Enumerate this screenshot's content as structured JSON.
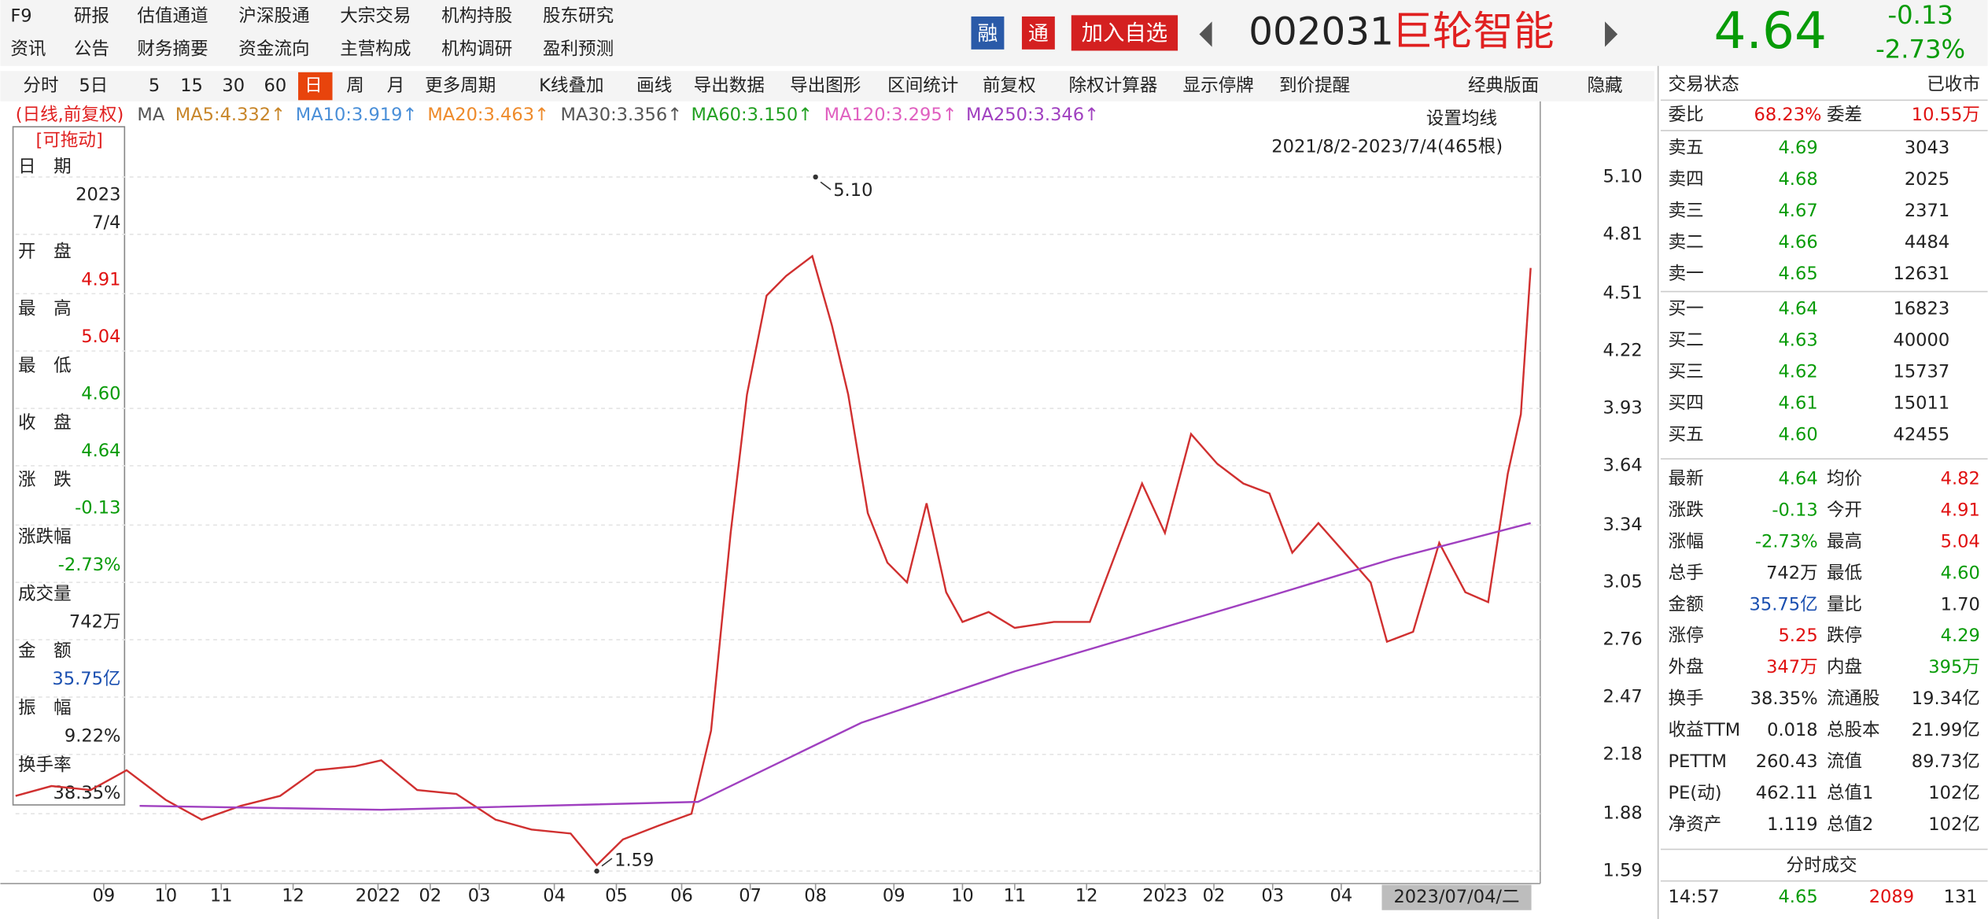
{
  "top_menu": [
    [
      "F9",
      "研报",
      "估值通道",
      "沪深股通",
      "大宗交易",
      "机构持股",
      "股东研究"
    ],
    [
      "资讯",
      "公告",
      "财务摘要",
      "资金流向",
      "主营构成",
      "机构调研",
      "盈利预测"
    ]
  ],
  "quote_header": {
    "tags": [
      "融",
      "通"
    ],
    "add_button": "加入自选",
    "code": "002031",
    "name": "巨轮智能",
    "price": "4.64",
    "change": "-0.13",
    "change_pct": "-2.73%"
  },
  "period_bar": [
    "分时",
    "5日",
    "5",
    "15",
    "30",
    "60",
    "日",
    "周",
    "月",
    "更多周期",
    "K线叠加",
    "画线",
    "导出数据",
    "导出图形",
    "区间统计",
    "前复权",
    "除权计算器",
    "显示停牌",
    "到价提醒",
    "经典版面",
    "隐藏"
  ],
  "ma_legend": {
    "mode": "(日线,前复权)",
    "prefix": "MA",
    "items": [
      {
        "label": "MA5:4.332↑",
        "color": "#c8862a"
      },
      {
        "label": "MA10:3.919↑",
        "color": "#4a8fd8"
      },
      {
        "label": "MA20:3.463↑",
        "color": "#ee8a2a"
      },
      {
        "label": "MA30:3.356↑",
        "color": "#555555"
      },
      {
        "label": "MA60:3.150↑",
        "color": "#22a022"
      },
      {
        "label": "MA120:3.295↑",
        "color": "#e060c0"
      },
      {
        "label": "MA250:3.346↑",
        "color": "#a040c0"
      }
    ]
  },
  "chart_controls": {
    "set_ma": "设置均线",
    "range": "2021/8/2-2023/7/4(465根)",
    "drag": "[可拖动]"
  },
  "info_panel": [
    {
      "label": "日　期",
      "values": [
        "2023",
        "7/4"
      ],
      "color": "#222222"
    },
    {
      "label": "开　盘",
      "values": [
        "4.91"
      ],
      "color": "#e01010"
    },
    {
      "label": "最　高",
      "values": [
        "5.04"
      ],
      "color": "#e01010"
    },
    {
      "label": "最　低",
      "values": [
        "4.60"
      ],
      "color": "#079b07"
    },
    {
      "label": "收　盘",
      "values": [
        "4.64"
      ],
      "color": "#079b07"
    },
    {
      "label": "涨　跌",
      "values": [
        "-0.13"
      ],
      "color": "#079b07"
    },
    {
      "label": "涨跌幅",
      "values": [
        "-2.73%"
      ],
      "color": "#079b07"
    },
    {
      "label": "成交量",
      "values": [
        "742万"
      ],
      "color": "#222222"
    },
    {
      "label": "金　额",
      "values": [
        "35.75亿"
      ],
      "color": "#1a4fb0"
    },
    {
      "label": "振　幅",
      "values": [
        "9.22%"
      ],
      "color": "#222222"
    },
    {
      "label": "换手率",
      "values": [
        "38.35%"
      ],
      "color": "#222222"
    }
  ],
  "order_book": {
    "status_label": "交易状态",
    "status": "已收市",
    "weibi_label": "委比",
    "weibi": "68.23%",
    "weicha_label": "委差",
    "weicha": "10.55万",
    "asks": [
      [
        "卖五",
        "4.69",
        "3043"
      ],
      [
        "卖四",
        "4.68",
        "2025"
      ],
      [
        "卖三",
        "4.67",
        "2371"
      ],
      [
        "卖二",
        "4.66",
        "4484"
      ],
      [
        "卖一",
        "4.65",
        "12631"
      ]
    ],
    "bids": [
      [
        "买一",
        "4.64",
        "16823"
      ],
      [
        "买二",
        "4.63",
        "40000"
      ],
      [
        "买三",
        "4.62",
        "15737"
      ],
      [
        "买四",
        "4.61",
        "15011"
      ],
      [
        "买五",
        "4.60",
        "42455"
      ]
    ]
  },
  "stats": [
    {
      "cells": [
        "最新",
        "4.64",
        "均价",
        "4.82"
      ],
      "colors": [
        "#079b07",
        "#e01010"
      ]
    },
    {
      "cells": [
        "涨跌",
        "-0.13",
        "今开",
        "4.91"
      ],
      "colors": [
        "#079b07",
        "#e01010"
      ]
    },
    {
      "cells": [
        "涨幅",
        "-2.73%",
        "最高",
        "5.04"
      ],
      "colors": [
        "#079b07",
        "#e01010"
      ]
    },
    {
      "cells": [
        "总手",
        "742万",
        "最低",
        "4.60"
      ],
      "colors": [
        "#222222",
        "#079b07"
      ]
    },
    {
      "cells": [
        "金额",
        "35.75亿",
        "量比",
        "1.70"
      ],
      "colors": [
        "#1a4fb0",
        "#222222"
      ]
    },
    {
      "cells": [
        "涨停",
        "5.25",
        "跌停",
        "4.29"
      ],
      "colors": [
        "#e01010",
        "#079b07"
      ]
    },
    {
      "cells": [
        "外盘",
        "347万",
        "内盘",
        "395万"
      ],
      "colors": [
        "#e01010",
        "#079b07"
      ]
    },
    {
      "cells": [
        "换手",
        "38.35%",
        "流通股",
        "19.34亿"
      ],
      "colors": [
        "#222222",
        "#222222"
      ]
    },
    {
      "cells": [
        "收益TTM",
        "0.018",
        "总股本",
        "21.99亿"
      ],
      "colors": [
        "#222222",
        "#222222"
      ]
    },
    {
      "cells": [
        "PETTM",
        "260.43",
        "流值",
        "89.73亿"
      ],
      "colors": [
        "#222222",
        "#222222"
      ]
    },
    {
      "cells": [
        "PE(动)",
        "462.11",
        "总值1",
        "102亿"
      ],
      "colors": [
        "#222222",
        "#222222"
      ]
    },
    {
      "cells": [
        "净资产",
        "1.119",
        "总值2",
        "102亿"
      ],
      "colors": [
        "#222222",
        "#222222"
      ]
    }
  ],
  "ticks_title": "分时成交",
  "last_tick": [
    "14:57",
    "4.65",
    "2089",
    "131"
  ],
  "chart_data": {
    "type": "line",
    "grid": true,
    "xlim": [
      0,
      465
    ],
    "ylim": [
      1.54,
      5.29
    ],
    "yticks": [
      {
        "value": 5.1,
        "label": "5.10"
      },
      4.81,
      4.51,
      4.22,
      3.93,
      3.64,
      3.34,
      3.05,
      2.76,
      2.47,
      2.18,
      1.88,
      1.59
    ],
    "xticks": [
      {
        "value": 27,
        "label": "09"
      },
      {
        "value": 46,
        "label": "10"
      },
      {
        "value": 63,
        "label": "11"
      },
      {
        "value": 85,
        "label": "12"
      },
      {
        "value": 111,
        "label": "2022"
      },
      {
        "value": 127,
        "label": "02"
      },
      {
        "value": 142,
        "label": "03"
      },
      {
        "value": 165,
        "label": "04"
      },
      {
        "value": 184,
        "label": "05"
      },
      {
        "value": 204,
        "label": "06"
      },
      {
        "value": 225,
        "label": "07"
      },
      {
        "value": 245,
        "label": "08"
      },
      {
        "value": 269,
        "label": "09"
      },
      {
        "value": 290,
        "label": "10"
      },
      {
        "value": 306,
        "label": "11"
      },
      {
        "value": 328,
        "label": "12"
      },
      {
        "value": 352,
        "label": "2023"
      },
      {
        "value": 367,
        "label": "02"
      },
      {
        "value": 385,
        "label": "03"
      },
      {
        "value": 406,
        "label": "04"
      }
    ],
    "cursor_label": "2023/07/04/二",
    "series": [
      {
        "color": "#d03030",
        "x": [
          0,
          11,
          23,
          34,
          46,
          57,
          69,
          81,
          92,
          104,
          112,
          123,
          135,
          147,
          158,
          170,
          178,
          186,
          197,
          207,
          213,
          219,
          224,
          230,
          236,
          244,
          250,
          255,
          261,
          267,
          273,
          279,
          285,
          290,
          298,
          306,
          318,
          329,
          337,
          345,
          352,
          360,
          368,
          376,
          384,
          391,
          399,
          407,
          415,
          420,
          428,
          436,
          444,
          451,
          457,
          461,
          464
        ],
        "values": [
          1.97,
          2.02,
          2.0,
          2.1,
          1.95,
          1.85,
          1.92,
          1.97,
          2.1,
          2.12,
          2.15,
          2.0,
          1.98,
          1.85,
          1.8,
          1.78,
          1.62,
          1.75,
          1.82,
          1.88,
          2.3,
          3.3,
          4.0,
          4.5,
          4.6,
          4.7,
          4.35,
          4.0,
          3.4,
          3.15,
          3.05,
          3.45,
          3.0,
          2.85,
          2.9,
          2.82,
          2.85,
          2.85,
          3.2,
          3.55,
          3.3,
          3.8,
          3.65,
          3.55,
          3.5,
          3.2,
          3.35,
          3.2,
          3.05,
          2.75,
          2.8,
          3.25,
          3.0,
          2.95,
          3.6,
          3.9,
          4.64
        ]
      },
      {
        "color": "#a040c0",
        "x": [
          38,
          112,
          209,
          259,
          306,
          345,
          384,
          422,
          464
        ],
        "values": [
          1.92,
          1.9,
          1.94,
          2.34,
          2.6,
          2.79,
          2.98,
          3.17,
          3.35
        ]
      }
    ],
    "annotations": [
      {
        "text": "5.10",
        "x": 245,
        "y": 5.1
      },
      {
        "text": "1.59",
        "x": 178,
        "y": 1.59
      }
    ]
  }
}
